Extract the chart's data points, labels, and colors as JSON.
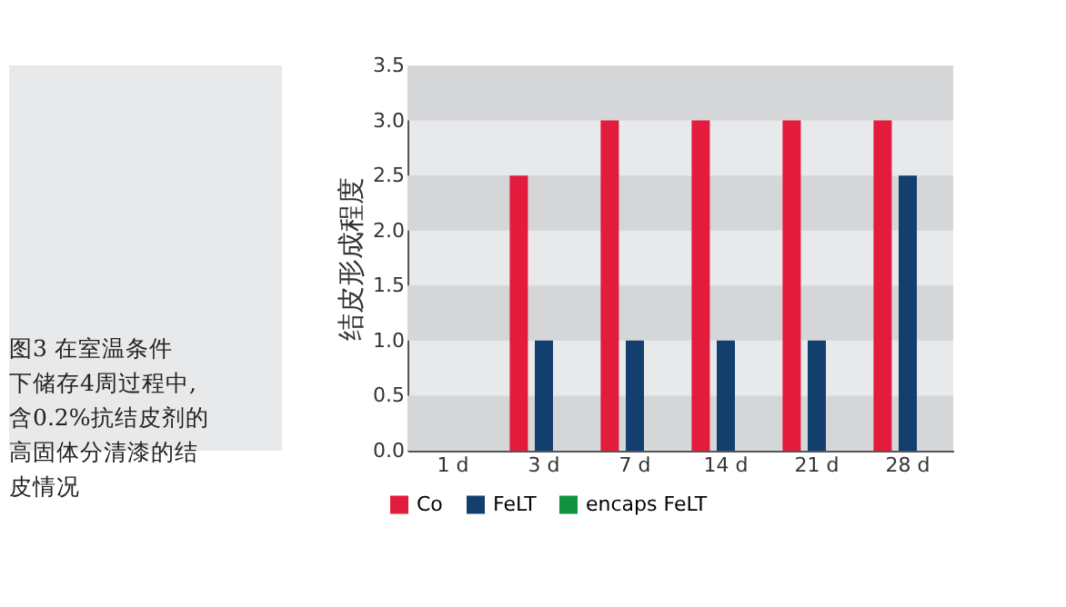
{
  "chart_data": {
    "type": "bar",
    "ylabel": "结皮形成程度",
    "categories": [
      "1 d",
      "3 d",
      "7 d",
      "14 d",
      "21 d",
      "28 d"
    ],
    "series": [
      {
        "name": "Co",
        "color": "#e31b3c",
        "values": [
          0,
          2.5,
          3,
          3,
          3,
          3
        ]
      },
      {
        "name": "FeLT",
        "color": "#123f6e",
        "values": [
          0,
          1,
          1,
          1,
          1,
          2.5
        ]
      },
      {
        "name": "encaps FeLT",
        "color": "#10933f",
        "values": [
          0,
          0,
          0,
          0,
          0,
          0
        ]
      }
    ],
    "ylim": [
      0,
      3.5
    ],
    "yticks": [
      {
        "value": 0,
        "label": "0.0"
      },
      {
        "value": 0.5,
        "label": "0.5"
      },
      {
        "value": 1,
        "label": "1.0"
      },
      {
        "value": 1.5,
        "label": "1.5"
      },
      {
        "value": 2,
        "label": "2.0"
      },
      {
        "value": 2.5,
        "label": "2.5"
      },
      {
        "value": 3,
        "label": "3.0"
      },
      {
        "value": 3.5,
        "label": "3.5"
      }
    ],
    "bands": [
      {
        "axis": "y",
        "from": 0,
        "to": 0.5,
        "color": "#d5d6d8"
      },
      {
        "axis": "y",
        "from": 1,
        "to": 1.5,
        "color": "#d5d6d8"
      },
      {
        "axis": "y",
        "from": 2,
        "to": 2.5,
        "color": "#d5d6d8"
      },
      {
        "axis": "y",
        "from": 3,
        "to": 3.5,
        "color": "#d5d6d8"
      }
    ],
    "grid": false,
    "legend": "bottom left",
    "annotations": [
      "图3  在室温条件下储存4周过程中, 含0.2%抗结皮剂的高固体分清漆的结皮情况"
    ]
  }
}
